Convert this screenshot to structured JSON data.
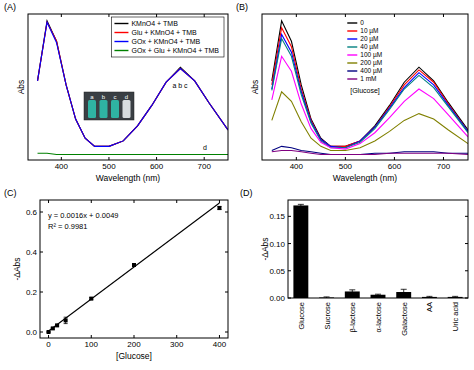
{
  "chart_data": [
    {
      "type": "line",
      "title": "(A)",
      "x_label": "Wavelength (nm)",
      "y_label": "Abs",
      "x": [
        350,
        370,
        390,
        410,
        430,
        450,
        470,
        500,
        530,
        560,
        590,
        620,
        650,
        680,
        710,
        750
      ],
      "xlim": [
        330,
        750
      ],
      "xticks": [
        400,
        500,
        600,
        700
      ],
      "ylim": [
        -0.02,
        1.05
      ],
      "tick_labels": "x",
      "legend": "top-right",
      "series": [
        {
          "name": "KMnO4 + TMB",
          "color": "#000000",
          "values": [
            0.56,
            1.0,
            0.85,
            0.53,
            0.28,
            0.14,
            0.08,
            0.08,
            0.12,
            0.23,
            0.38,
            0.55,
            0.66,
            0.56,
            0.4,
            0.2
          ]
        },
        {
          "name": "Glu + KMnO4 + TMB",
          "color": "#ff0000",
          "values": [
            0.56,
            0.99,
            0.85,
            0.53,
            0.28,
            0.14,
            0.08,
            0.08,
            0.12,
            0.23,
            0.38,
            0.55,
            0.65,
            0.56,
            0.4,
            0.2
          ]
        },
        {
          "name": "GOx + KMnO4 + TMB",
          "color": "#0000ff",
          "values": [
            0.56,
            0.99,
            0.84,
            0.53,
            0.28,
            0.14,
            0.08,
            0.08,
            0.12,
            0.23,
            0.38,
            0.55,
            0.65,
            0.56,
            0.4,
            0.2
          ]
        },
        {
          "name": "GOx + Glu + KMnO4 + TMB",
          "color": "#008000",
          "values": [
            0.03,
            0.03,
            0.02,
            0.02,
            0.02,
            0.02,
            0.02,
            0.02,
            0.02,
            0.02,
            0.02,
            0.02,
            0.02,
            0.02,
            0.02,
            0.02
          ]
        }
      ],
      "annotations": [
        "a b c",
        "d",
        "a",
        "b",
        "c",
        "d"
      ]
    },
    {
      "type": "line",
      "title": "(B)",
      "x_label": "Wavelength (nm)",
      "y_label": "Abs",
      "x": [
        350,
        370,
        390,
        410,
        430,
        450,
        470,
        500,
        530,
        560,
        590,
        620,
        650,
        680,
        710,
        750
      ],
      "xlim": [
        330,
        750
      ],
      "xticks": [
        400,
        500,
        600,
        700
      ],
      "ylim": [
        -0.02,
        1.05
      ],
      "tick_labels": "x",
      "legend": "top",
      "series": [
        {
          "name": "0",
          "color": "#000000",
          "values": [
            0.56,
            1.0,
            0.85,
            0.53,
            0.28,
            0.14,
            0.08,
            0.08,
            0.12,
            0.23,
            0.38,
            0.55,
            0.66,
            0.56,
            0.4,
            0.2
          ]
        },
        {
          "name": "10 µM",
          "color": "#ff0000",
          "values": [
            0.53,
            0.95,
            0.81,
            0.5,
            0.27,
            0.13,
            0.08,
            0.08,
            0.12,
            0.22,
            0.37,
            0.53,
            0.64,
            0.55,
            0.39,
            0.19
          ]
        },
        {
          "name": "20 µM",
          "color": "#0000ff",
          "values": [
            0.5,
            0.9,
            0.77,
            0.48,
            0.26,
            0.13,
            0.08,
            0.07,
            0.12,
            0.22,
            0.36,
            0.51,
            0.62,
            0.53,
            0.38,
            0.19
          ]
        },
        {
          "name": "40 µM",
          "color": "#008080",
          "values": [
            0.49,
            0.87,
            0.74,
            0.46,
            0.25,
            0.12,
            0.07,
            0.07,
            0.11,
            0.21,
            0.35,
            0.5,
            0.6,
            0.51,
            0.37,
            0.18
          ]
        },
        {
          "name": "100 µM",
          "color": "#ff00ff",
          "values": [
            0.42,
            0.74,
            0.63,
            0.39,
            0.21,
            0.11,
            0.07,
            0.06,
            0.1,
            0.18,
            0.29,
            0.41,
            0.5,
            0.43,
            0.31,
            0.15
          ]
        },
        {
          "name": "200 µM",
          "color": "#808000",
          "values": [
            0.27,
            0.48,
            0.41,
            0.26,
            0.14,
            0.08,
            0.05,
            0.05,
            0.07,
            0.12,
            0.19,
            0.27,
            0.32,
            0.28,
            0.2,
            0.1
          ]
        },
        {
          "name": "400 µM",
          "color": "#000080",
          "values": [
            0.05,
            0.08,
            0.07,
            0.05,
            0.04,
            0.03,
            0.02,
            0.02,
            0.02,
            0.03,
            0.03,
            0.04,
            0.04,
            0.04,
            0.03,
            0.03
          ]
        },
        {
          "name": "1 mM",
          "color": "#800080",
          "values": [
            0.04,
            0.05,
            0.05,
            0.04,
            0.03,
            0.02,
            0.02,
            0.02,
            0.02,
            0.02,
            0.03,
            0.03,
            0.03,
            0.03,
            0.03,
            0.02
          ]
        }
      ],
      "annotations": [
        "[Glucose]"
      ]
    },
    {
      "type": "scatter",
      "title": "(C)",
      "x_label": "[Glucose]",
      "y_label": "-ΔAbs",
      "xlim": [
        -20,
        420
      ],
      "xticks": [
        0,
        100,
        200,
        300,
        400
      ],
      "ylim": [
        -0.03,
        0.66
      ],
      "yticks": [
        {
          "value": 0,
          "label": "0.0"
        },
        {
          "value": 0.2,
          "label": "0.2"
        },
        {
          "value": 0.4,
          "label": "0.4"
        },
        {
          "value": 0.6,
          "label": "0.6"
        }
      ],
      "series": [
        {
          "type": "scatter",
          "marker": "square",
          "color": "#000000",
          "x": [
            0,
            10,
            20,
            40,
            100,
            200,
            400
          ],
          "values": [
            0.0,
            0.018,
            0.033,
            0.058,
            0.167,
            0.335,
            0.62
          ],
          "errors": [
            0.002,
            0.004,
            0.005,
            0.016,
            0.005,
            0.006,
            0.008
          ]
        },
        {
          "type": "line",
          "line_style": "solid",
          "color": "#000000",
          "x": [
            0,
            400
          ],
          "values": [
            0.005,
            0.645
          ]
        }
      ],
      "annotations": [
        "y = 0.0016x + 0.0049",
        "R² = 0.9981"
      ]
    },
    {
      "type": "bar",
      "title": "(D)",
      "y_label": "-ΔAbs",
      "categories": [
        "Glucose",
        "Sucrose",
        "β-lactose",
        "α-lactose",
        "Galactose",
        "AA",
        "Uric acid"
      ],
      "values": [
        0.17,
        0.001,
        0.012,
        0.006,
        0.011,
        0.002,
        0.002
      ],
      "errors": [
        0.002,
        0.001,
        0.003,
        0.001,
        0.005,
        0.001,
        0.001
      ],
      "color": "#000000",
      "ylim": [
        0,
        0.18
      ],
      "yticks": [
        {
          "value": 0,
          "label": "0.00"
        },
        {
          "value": 0.05,
          "label": "0.05"
        },
        {
          "value": 0.1,
          "label": "0.10"
        },
        {
          "value": 0.15,
          "label": "0.15"
        }
      ]
    }
  ]
}
